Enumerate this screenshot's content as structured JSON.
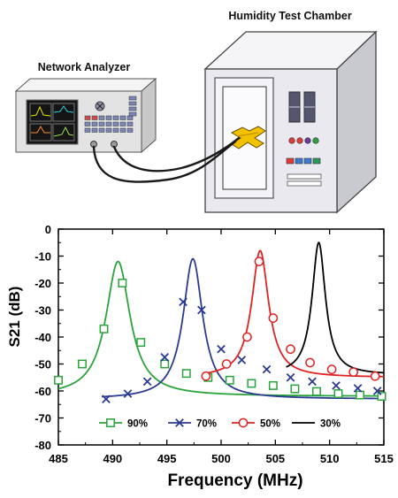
{
  "diagram": {
    "network_analyzer_label": "Network Analyzer",
    "humidity_chamber_label": "Humidity Test Chamber"
  },
  "colors": {
    "s90": "#2aa33a",
    "s70": "#2b3b91",
    "s50": "#e02222",
    "s30": "#000000",
    "axis": "#000000",
    "device_body": "#e6e6e6",
    "chamber_body": "#e8e8ee",
    "sensor": "#f2c200"
  },
  "chart_data": {
    "type": "line",
    "title": "",
    "xlabel": "Frequency (MHz)",
    "ylabel": "S21 (dB)",
    "xlim": [
      485,
      515
    ],
    "ylim": [
      -80,
      0
    ],
    "xticks": [
      485,
      490,
      495,
      500,
      505,
      510,
      515
    ],
    "yticks": [
      0,
      -10,
      -20,
      -30,
      -40,
      -50,
      -60,
      -70,
      -80
    ],
    "xtick_labels": [
      "485",
      "490",
      "495",
      "500",
      "505",
      "510",
      "515"
    ],
    "ytick_labels": [
      "0",
      "-10",
      "-20",
      "-30",
      "-40",
      "-50",
      "-60",
      "-70",
      "-80"
    ],
    "legend_position": "bottom",
    "grid": false,
    "series": [
      {
        "name": "90%",
        "color": "#2aa33a",
        "marker": "square",
        "x_range": [
          485,
          515
        ],
        "resonance": {
          "f0": 490.5,
          "peak": -12,
          "base": -62,
          "halfwidth": 1.35
        },
        "markers_x": [
          485,
          487.2,
          489.2,
          490.9,
          492.6,
          494.8,
          496.8,
          498.8,
          500.8,
          502.8,
          504.8,
          506.8,
          508.8,
          510.8,
          512.8,
          514.8
        ],
        "markers_y": [
          -56,
          -50,
          -37,
          -20,
          -42,
          -50,
          -53.5,
          -55,
          -56,
          -57.2,
          -58,
          -59.2,
          -60.2,
          -61,
          -61.5,
          -62
        ]
      },
      {
        "name": "70%",
        "color": "#2b3b91",
        "marker": "x",
        "x_range": [
          489,
          515
        ],
        "resonance": {
          "f0": 497.4,
          "peak": -11,
          "base": -63,
          "halfwidth": 1.1
        },
        "markers_x": [
          489.4,
          491.4,
          493.2,
          494.8,
          496.5,
          498.2,
          500,
          501.9,
          504.2,
          506.4,
          508.4,
          510.6,
          512.6,
          514.4
        ],
        "markers_y": [
          -63,
          -61,
          -56.5,
          -47.5,
          -27,
          -30,
          -44.5,
          -48.5,
          -52,
          -55,
          -56.5,
          -58,
          -59,
          -60
        ]
      },
      {
        "name": "50%",
        "color": "#e02222",
        "marker": "circle",
        "x_range": [
          498.5,
          515
        ],
        "resonance": {
          "f0": 503.6,
          "peak": -8,
          "base": -55,
          "halfwidth": 0.95
        },
        "markers_x": [
          498.6,
          500.5,
          502.4,
          503.5,
          504.8,
          506.4,
          508.2,
          510.2,
          512.2,
          514.2
        ],
        "markers_y": [
          -54.5,
          -50,
          -40,
          -12,
          -33,
          -44.5,
          -49.5,
          -52,
          -53,
          -54.5
        ]
      },
      {
        "name": "30%",
        "color": "#000000",
        "marker": "none",
        "x_range": [
          506,
          515
        ],
        "resonance": {
          "f0": 509,
          "peak": -5,
          "base": -54,
          "halfwidth": 0.75
        },
        "markers_x": [],
        "markers_y": []
      }
    ]
  }
}
